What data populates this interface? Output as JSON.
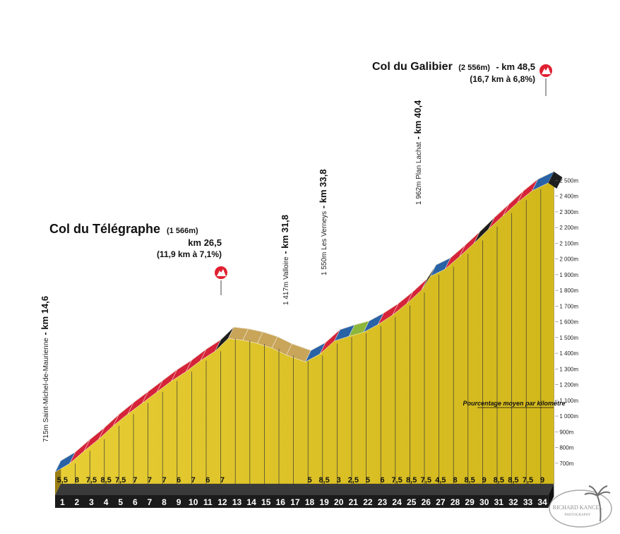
{
  "chart_data": {
    "type": "area",
    "x_unit": "km",
    "y_unit": "m",
    "ylim": [
      600,
      2550
    ],
    "km_labels": [
      "1",
      "2",
      "3",
      "4",
      "5",
      "6",
      "7",
      "8",
      "9",
      "10",
      "11",
      "12",
      "13",
      "14",
      "15",
      "16",
      "17",
      "18",
      "19",
      "20",
      "21",
      "22",
      "23",
      "24",
      "25",
      "26",
      "27",
      "28",
      "29",
      "30",
      "31",
      "32",
      "33",
      "34"
    ],
    "gradients": [
      "5,5",
      "8",
      "7,5",
      "8,5",
      "7,5",
      "7",
      "7",
      "7",
      "6",
      "7",
      "6",
      "7",
      "",
      "",
      "",
      "",
      "",
      "5",
      "8,5",
      "3",
      "2,5",
      "5",
      "6",
      "7,5",
      "8,5",
      "7,5",
      "4,5",
      "8",
      "8,5",
      "9",
      "8,5",
      "8,5",
      "7,5",
      "9"
    ],
    "elevation_profile": [
      {
        "km": 14.6,
        "alt": 715
      },
      {
        "km": 15.6,
        "alt": 770
      },
      {
        "km": 16.6,
        "alt": 850
      },
      {
        "km": 17.6,
        "alt": 925
      },
      {
        "km": 18.6,
        "alt": 1010
      },
      {
        "km": 19.6,
        "alt": 1085
      },
      {
        "km": 20.6,
        "alt": 1155
      },
      {
        "km": 21.6,
        "alt": 1225
      },
      {
        "km": 22.6,
        "alt": 1295
      },
      {
        "km": 23.6,
        "alt": 1355
      },
      {
        "km": 24.6,
        "alt": 1425
      },
      {
        "km": 25.6,
        "alt": 1485
      },
      {
        "km": 26.5,
        "alt": 1566
      },
      {
        "km": 27.5,
        "alt": 1555
      },
      {
        "km": 28.5,
        "alt": 1535
      },
      {
        "km": 29.5,
        "alt": 1505
      },
      {
        "km": 30.5,
        "alt": 1460
      },
      {
        "km": 31.8,
        "alt": 1417
      },
      {
        "km": 32.8,
        "alt": 1467
      },
      {
        "km": 33.8,
        "alt": 1550
      },
      {
        "km": 34.8,
        "alt": 1580
      },
      {
        "km": 35.8,
        "alt": 1605
      },
      {
        "km": 36.8,
        "alt": 1655
      },
      {
        "km": 37.8,
        "alt": 1715
      },
      {
        "km": 38.8,
        "alt": 1790
      },
      {
        "km": 39.8,
        "alt": 1875
      },
      {
        "km": 40.4,
        "alt": 1962
      },
      {
        "km": 41.4,
        "alt": 2007
      },
      {
        "km": 42.4,
        "alt": 2087
      },
      {
        "km": 43.4,
        "alt": 2172
      },
      {
        "km": 44.4,
        "alt": 2262
      },
      {
        "km": 45.4,
        "alt": 2347
      },
      {
        "km": 46.4,
        "alt": 2432
      },
      {
        "km": 47.4,
        "alt": 2507
      },
      {
        "km": 48.5,
        "alt": 2556
      }
    ],
    "y_ticks": [
      "700m",
      "800m",
      "900m",
      "1 000m",
      "1 100m",
      "1 200m",
      "1 300m",
      "1 400m",
      "1 500m",
      "1 600m",
      "1 700m",
      "1 800m",
      "1 900m",
      "2 000m",
      "2 100m",
      "2 200m",
      "2 300m",
      "2 400m",
      "2 500m"
    ],
    "gradient_colors": {
      "lt3": "#8db63c",
      "3to6": "#2a62a6",
      "6to9": "#d5243a",
      "ge9": "#1e1e1e",
      "descent": "#c9a55a"
    },
    "fill_color": "#e5c81e",
    "base_color": "#1b1b1b"
  },
  "summits": [
    {
      "name": "Col du Télégraphe",
      "alt": "(1 566m)",
      "km": "km 26,5",
      "stats": "(11,9 km à 7,1%)"
    },
    {
      "name": "Col du Galibier",
      "alt": "(2 556m)",
      "km": "- km 48,5",
      "stats": "(16,7 km à 6,8%)"
    }
  ],
  "waypoints": [
    {
      "place": "715m Saint-Michel-de-Maurienne",
      "km": " - km 14,6"
    },
    {
      "place": "1 417m Valloire",
      "km": " - km 31,8"
    },
    {
      "place": "1 550m Les Verneys",
      "km": " - km 33,8"
    },
    {
      "place": "1 962m Plan Lachat",
      "km": " - km 40,4"
    }
  ],
  "note": "Pourcentage moyen par kilomètre",
  "watermark": {
    "name": "RICHARD KANCEL",
    "sub": "PHOTOGRAPHY"
  }
}
